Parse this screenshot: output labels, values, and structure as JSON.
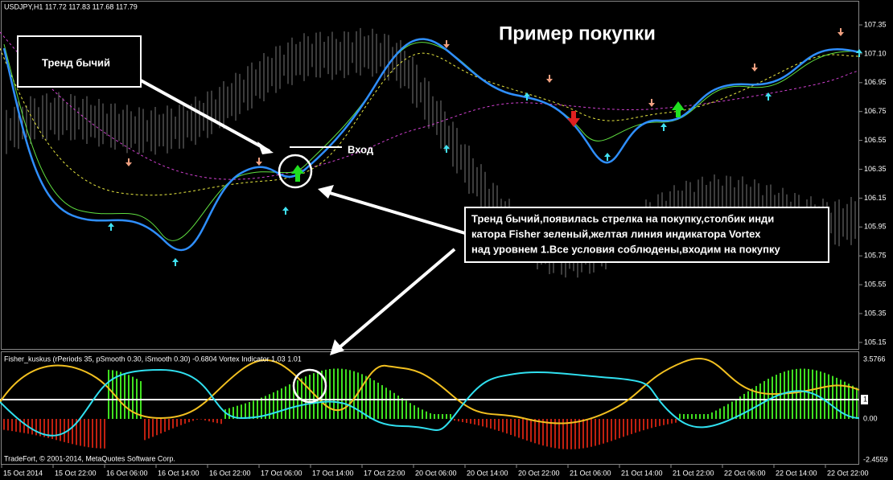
{
  "main_panel": {
    "symbol_info": "USDJPY,H1  117.72 117.83 117.68 117.79",
    "price_ticks": [
      "107.35",
      "107.10",
      "106.95",
      "106.75",
      "106.55",
      "106.35",
      "106.15",
      "105.95",
      "105.75",
      "105.55",
      "105.35",
      "105.15"
    ]
  },
  "annotations": {
    "title": "Пример покупки",
    "trend_box": "Тренд бычий",
    "entry": "Вход",
    "explanation": [
      "Тренд бычий,появилась стрелка на покупку,столбик инди",
      "катора Fisher зеленый,желтая линия индикатора Vortex",
      "над уровнем 1.Все условия соблюдены,входим на покупку"
    ]
  },
  "indicator_panel": {
    "info": "Fisher_kuskus  (rPeriods 35, pSmooth 0.30, iSmooth 0.30)  -0.6804  Vortex Indicator 1.03 1.01",
    "ticks": [
      "3.5766",
      "1",
      "0.00",
      "-2.4559"
    ],
    "copyright": "TradeFort, © 2001-2014, MetaQuotes Software Corp."
  },
  "time_axis": [
    "15 Oct 2014",
    "15 Oct 22:00",
    "16 Oct 06:00",
    "16 Oct 14:00",
    "16 Oct 22:00",
    "17 Oct 06:00",
    "17 Oct 14:00",
    "17 Oct 22:00",
    "20 Oct 06:00",
    "20 Oct 14:00",
    "20 Oct 22:00",
    "21 Oct 06:00",
    "21 Oct 14:00",
    "21 Oct 22:00",
    "22 Oct 06:00",
    "22 Oct 14:00",
    "22 Oct 22:00"
  ]
}
